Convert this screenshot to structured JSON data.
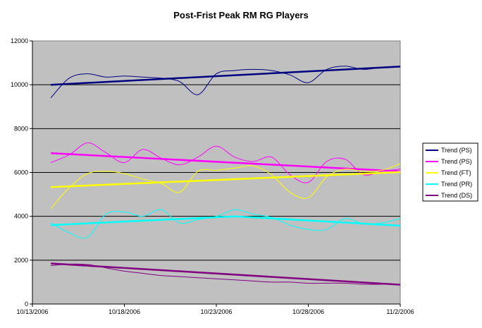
{
  "chart_data": {
    "type": "line",
    "title": "Post-Frist Peak RM RG Players",
    "xlabel": "",
    "ylabel": "",
    "x_ticks": [
      "10/13/2006",
      "10/18/2006",
      "10/23/2006",
      "10/28/2006",
      "11/2/2006"
    ],
    "x_range": [
      "10/13/2006",
      "11/2/2006"
    ],
    "ylim": [
      0,
      12000
    ],
    "y_ticks": [
      0,
      2000,
      4000,
      6000,
      8000,
      10000,
      12000
    ],
    "grid": true,
    "plot_background": "#c0c0c0",
    "legend_position": "right",
    "series": [
      {
        "name": "Trend (PS)",
        "color": "#000080",
        "raw": [
          [
            "10/14/2006",
            9400
          ],
          [
            "10/15/2006",
            10300
          ],
          [
            "10/16/2006",
            10500
          ],
          [
            "10/17/2006",
            10350
          ],
          [
            "10/18/2006",
            10400
          ],
          [
            "10/19/2006",
            10350
          ],
          [
            "10/20/2006",
            10300
          ],
          [
            "10/21/2006",
            10150
          ],
          [
            "10/22/2006",
            9550
          ],
          [
            "10/23/2006",
            10500
          ],
          [
            "10/24/2006",
            10650
          ],
          [
            "10/25/2006",
            10700
          ],
          [
            "10/26/2006",
            10650
          ],
          [
            "10/27/2006",
            10450
          ],
          [
            "10/28/2006",
            10100
          ],
          [
            "10/29/2006",
            10700
          ],
          [
            "10/30/2006",
            10850
          ],
          [
            "10/31/2006",
            10700
          ],
          [
            "11/1/2006",
            10800
          ],
          [
            "11/2/2006",
            10850
          ]
        ],
        "trend": [
          [
            "10/14/2006",
            10000
          ],
          [
            "11/2/2006",
            10830
          ]
        ]
      },
      {
        "name": "Trend (PS)",
        "color": "#ff00ff",
        "raw": [
          [
            "10/14/2006",
            6450
          ],
          [
            "10/15/2006",
            6800
          ],
          [
            "10/16/2006",
            7350
          ],
          [
            "10/17/2006",
            6900
          ],
          [
            "10/18/2006",
            6450
          ],
          [
            "10/19/2006",
            7050
          ],
          [
            "10/20/2006",
            6650
          ],
          [
            "10/21/2006",
            6350
          ],
          [
            "10/22/2006",
            6700
          ],
          [
            "10/23/2006",
            7200
          ],
          [
            "10/24/2006",
            6700
          ],
          [
            "10/25/2006",
            6500
          ],
          [
            "10/26/2006",
            6700
          ],
          [
            "10/27/2006",
            5900
          ],
          [
            "10/28/2006",
            5550
          ],
          [
            "10/29/2006",
            6500
          ],
          [
            "10/30/2006",
            6600
          ],
          [
            "10/31/2006",
            5900
          ],
          [
            "11/1/2006",
            6050
          ],
          [
            "11/2/2006",
            6150
          ]
        ],
        "trend": [
          [
            "10/14/2006",
            6880
          ],
          [
            "11/2/2006",
            6050
          ]
        ]
      },
      {
        "name": "Trend (FT)",
        "color": "#ffff00",
        "raw": [
          [
            "10/14/2006",
            4350
          ],
          [
            "10/15/2006",
            5300
          ],
          [
            "10/16/2006",
            5950
          ],
          [
            "10/17/2006",
            6050
          ],
          [
            "10/18/2006",
            5950
          ],
          [
            "10/19/2006",
            5700
          ],
          [
            "10/20/2006",
            5500
          ],
          [
            "10/21/2006",
            5100
          ],
          [
            "10/22/2006",
            6050
          ],
          [
            "10/23/2006",
            6100
          ],
          [
            "10/24/2006",
            6200
          ],
          [
            "10/25/2006",
            6300
          ],
          [
            "10/26/2006",
            5900
          ],
          [
            "10/27/2006",
            5100
          ],
          [
            "10/28/2006",
            4850
          ],
          [
            "10/29/2006",
            5800
          ],
          [
            "10/30/2006",
            6150
          ],
          [
            "10/31/2006",
            6050
          ],
          [
            "11/1/2006",
            6100
          ],
          [
            "11/2/2006",
            6400
          ]
        ],
        "trend": [
          [
            "10/14/2006",
            5330
          ],
          [
            "11/2/2006",
            6020
          ]
        ]
      },
      {
        "name": "Trend (PR)",
        "color": "#00ffff",
        "raw": [
          [
            "10/14/2006",
            3700
          ],
          [
            "10/15/2006",
            3250
          ],
          [
            "10/16/2006",
            3050
          ],
          [
            "10/17/2006",
            4100
          ],
          [
            "10/18/2006",
            4200
          ],
          [
            "10/19/2006",
            4000
          ],
          [
            "10/20/2006",
            4300
          ],
          [
            "10/21/2006",
            3700
          ],
          [
            "10/22/2006",
            3850
          ],
          [
            "10/23/2006",
            4000
          ],
          [
            "10/24/2006",
            4300
          ],
          [
            "10/25/2006",
            4100
          ],
          [
            "10/26/2006",
            3950
          ],
          [
            "10/27/2006",
            3600
          ],
          [
            "10/28/2006",
            3400
          ],
          [
            "10/29/2006",
            3400
          ],
          [
            "10/30/2006",
            3900
          ],
          [
            "10/31/2006",
            3650
          ],
          [
            "11/1/2006",
            3700
          ],
          [
            "11/2/2006",
            3900
          ]
        ],
        "trend": [
          [
            "10/14/2006",
            3600
          ],
          [
            "10/24/2006",
            4000
          ],
          [
            "11/2/2006",
            3570
          ]
        ]
      },
      {
        "name": "Trend (DS)",
        "color": "#800080",
        "raw": [
          [
            "10/14/2006",
            1750
          ],
          [
            "10/15/2006",
            1820
          ],
          [
            "10/16/2006",
            1800
          ],
          [
            "10/17/2006",
            1650
          ],
          [
            "10/18/2006",
            1500
          ],
          [
            "10/19/2006",
            1400
          ],
          [
            "10/20/2006",
            1300
          ],
          [
            "10/21/2006",
            1250
          ],
          [
            "10/22/2006",
            1200
          ],
          [
            "10/23/2006",
            1150
          ],
          [
            "10/24/2006",
            1100
          ],
          [
            "10/25/2006",
            1050
          ],
          [
            "10/26/2006",
            1000
          ],
          [
            "10/27/2006",
            1000
          ],
          [
            "10/28/2006",
            950
          ],
          [
            "10/29/2006",
            950
          ],
          [
            "10/30/2006",
            950
          ],
          [
            "10/31/2006",
            900
          ],
          [
            "11/1/2006",
            900
          ],
          [
            "11/2/2006",
            900
          ]
        ],
        "trend": [
          [
            "10/14/2006",
            1850
          ],
          [
            "11/2/2006",
            880
          ]
        ]
      }
    ]
  }
}
